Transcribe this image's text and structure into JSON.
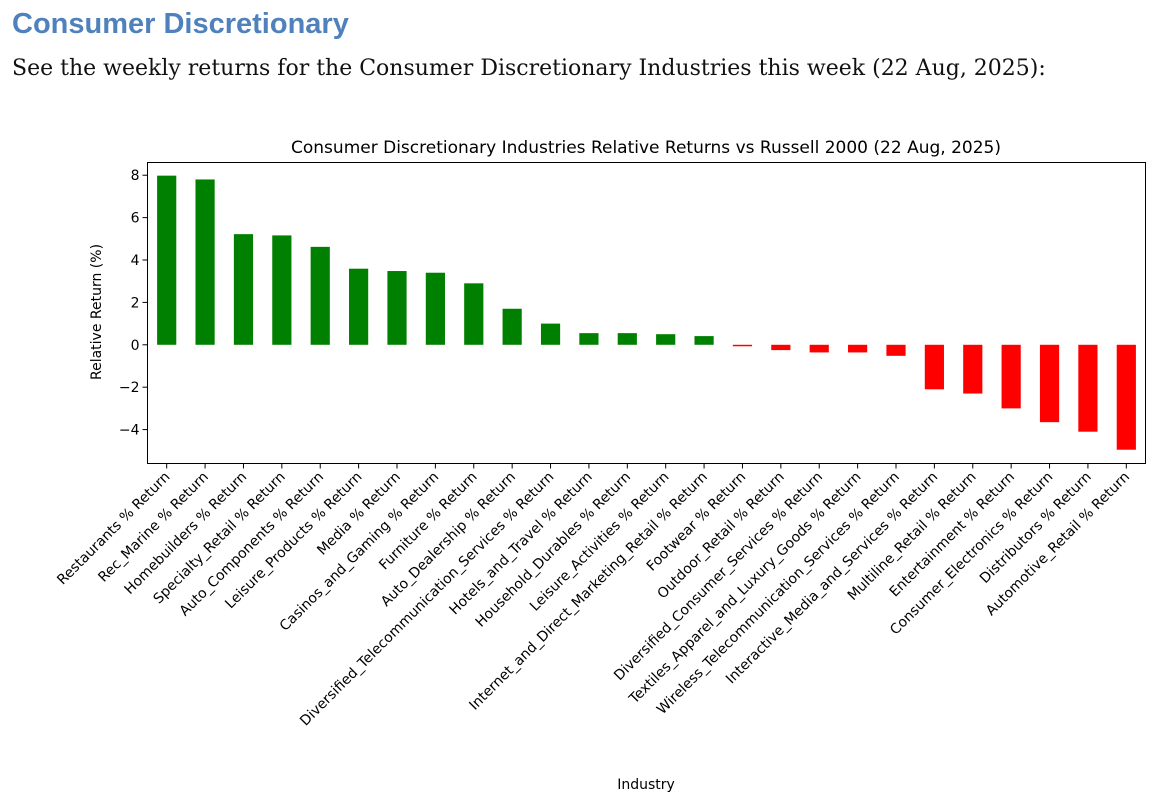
{
  "heading": "Consumer Discretionary",
  "intro": "See the weekly returns for the Consumer Discretionary Industries this week (22 Aug, 2025):",
  "chart_data": {
    "type": "bar",
    "title": "Consumer Discretionary Industries Relative Returns vs Russell 2000 (22 Aug, 2025)",
    "xlabel": "Industry",
    "ylabel": "Relative Return (%)",
    "ylim": [
      -5.6,
      8.6
    ],
    "yticks": [
      8,
      6,
      4,
      2,
      0,
      -2,
      -4
    ],
    "grid": false,
    "positive_color": "#008000",
    "negative_color": "#ff0000",
    "categories": [
      "Restaurants % Return",
      "Rec_Marine % Return",
      "Homebuilders % Return",
      "Specialty_Retail % Return",
      "Auto_Components % Return",
      "Leisure_Products % Return",
      "Media % Return",
      "Casinos_and_Gaming % Return",
      "Furniture % Return",
      "Auto_Dealership % Return",
      "Diversified_Telecommunication_Services % Return",
      "Hotels_and_Travel % Return",
      "Household_Durables % Return",
      "Leisure_Activities % Return",
      "Internet_and_Direct_Marketing_Retail % Return",
      "Footwear % Return",
      "Outdoor_Retail % Return",
      "Diversified_Consumer_Services % Return",
      "Textiles_Apparel_and_Luxury_Goods % Return",
      "Wireless_Telecommunication_Services % Return",
      "Interactive_Media_and_Services % Return",
      "Multiline_Retail % Return",
      "Entertainment % Return",
      "Consumer_Electronics % Return",
      "Distributors % Return",
      "Automotive_Retail % Return"
    ],
    "values": [
      7.98,
      7.8,
      5.22,
      5.16,
      4.62,
      3.59,
      3.48,
      3.4,
      2.9,
      1.7,
      1.0,
      0.55,
      0.55,
      0.5,
      0.41,
      -0.07,
      -0.25,
      -0.36,
      -0.36,
      -0.52,
      -2.1,
      -2.3,
      -3.0,
      -3.65,
      -4.1,
      -4.95
    ]
  }
}
